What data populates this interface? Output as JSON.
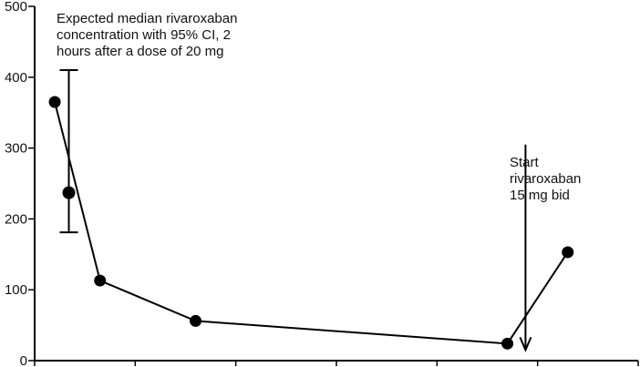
{
  "chart_data": {
    "type": "line",
    "title": "",
    "xlabel": "",
    "ylabel": "",
    "ylim": [
      0,
      500
    ],
    "y_ticks": [
      0,
      100,
      200,
      300,
      400,
      500
    ],
    "y_tick_labels": [
      "0",
      "100",
      "200",
      "300",
      "400",
      "500"
    ],
    "x_tick_count": 7,
    "grid": false,
    "series": [
      {
        "points": [
          {
            "x": 0.2,
            "y": 365
          },
          {
            "x": 0.65,
            "y": 113
          },
          {
            "x": 1.6,
            "y": 56
          },
          {
            "x": 4.7,
            "y": 24
          },
          {
            "x": 5.3,
            "y": 153
          }
        ]
      }
    ],
    "reference_point": {
      "x": 0.34,
      "y": 237,
      "ci_low": 181,
      "ci_high": 410
    },
    "annotations": [
      {
        "id": "expected-median",
        "lines": [
          "Expected median rivaroxaban",
          "concentration with 95% CI, 2",
          "hours after a dose of 20 mg"
        ]
      },
      {
        "id": "start-rivaroxaban",
        "lines": [
          "Start",
          "rivaroxaban",
          "15 mg bid"
        ],
        "arrow_x": 4.88,
        "arrow_y_top": 305,
        "arrow_y_bottom": 15
      }
    ],
    "colors": {
      "line": "#000000",
      "marker": "#000000",
      "axis": "#000000"
    }
  }
}
